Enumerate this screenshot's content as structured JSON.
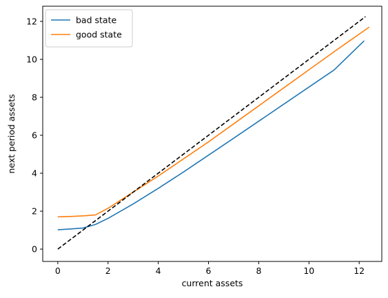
{
  "chart_data": {
    "type": "line",
    "title": "",
    "xlabel": "current assets",
    "ylabel": "next period assets",
    "xlim": [
      -0.6,
      12.9
    ],
    "ylim": [
      -0.65,
      12.8
    ],
    "xticks": [
      0,
      2,
      4,
      6,
      8,
      10,
      12
    ],
    "yticks": [
      0,
      2,
      4,
      6,
      8,
      10,
      12
    ],
    "grid": false,
    "legend_position": "top-left",
    "series": [
      {
        "name": "bad state",
        "color": "#1f77b4",
        "style": "solid",
        "x": [
          0,
          0.5,
          1.0,
          1.5,
          2.0,
          3.0,
          4.0,
          5.0,
          6.0,
          7.0,
          8.0,
          9.0,
          10.0,
          11.0,
          12.2
        ],
        "y": [
          1.02,
          1.06,
          1.11,
          1.3,
          1.62,
          2.38,
          3.2,
          4.06,
          4.95,
          5.84,
          6.74,
          7.64,
          8.54,
          9.44,
          10.98
        ]
      },
      {
        "name": "good state",
        "color": "#ff7f0e",
        "style": "solid",
        "x": [
          0,
          0.5,
          1.0,
          1.5,
          2.0,
          3.0,
          4.0,
          5.0,
          6.0,
          7.0,
          8.0,
          9.0,
          10.0,
          11.0,
          12.4
        ],
        "y": [
          1.7,
          1.72,
          1.75,
          1.8,
          2.15,
          3.0,
          3.85,
          4.75,
          5.65,
          6.6,
          7.55,
          8.5,
          9.45,
          10.4,
          11.7
        ]
      },
      {
        "name": "",
        "color": "#000000",
        "style": "dashed",
        "x": [
          0,
          12.25
        ],
        "y": [
          0,
          12.25
        ]
      }
    ]
  }
}
